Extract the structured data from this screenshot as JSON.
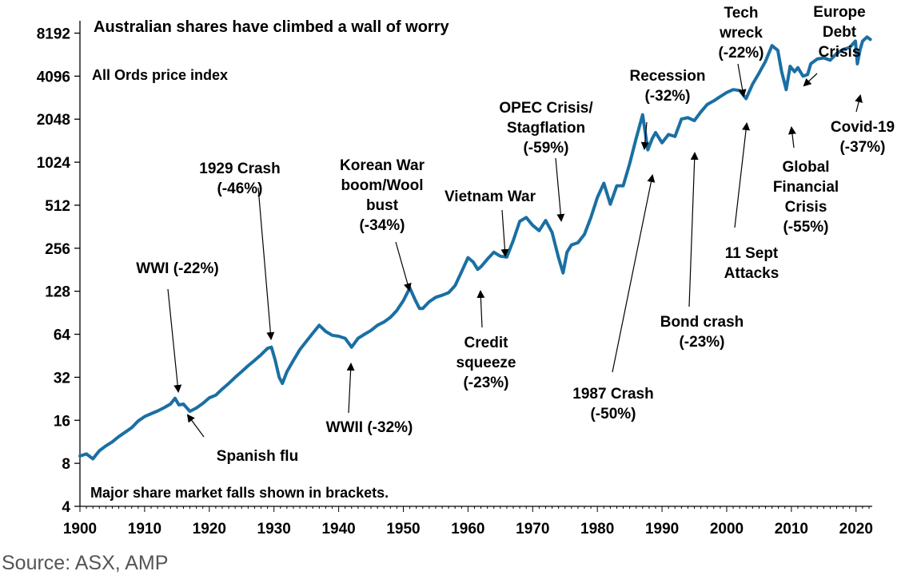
{
  "chart_data": {
    "type": "line",
    "title": "Australian shares have climbed a wall of worry",
    "subtitle": "All Ords price index",
    "note": "Major share market falls shown in brackets.",
    "source": "Source: ASX, AMP",
    "xlabel": "",
    "ylabel": "",
    "y_scale": "log2",
    "ylim": [
      4,
      10000
    ],
    "xlim": [
      1900,
      2022.5
    ],
    "y_ticks": [
      4,
      8,
      16,
      32,
      64,
      128,
      256,
      512,
      1024,
      2048,
      4096,
      8192
    ],
    "x_ticks": [
      1900,
      1910,
      1920,
      1930,
      1940,
      1950,
      1960,
      1970,
      1980,
      1990,
      2000,
      2010,
      2020
    ],
    "line_color": "#1a6fa3",
    "series": [
      {
        "name": "All Ords price index",
        "points": [
          [
            1900,
            9
          ],
          [
            1901,
            9.3
          ],
          [
            1902,
            8.6
          ],
          [
            1903,
            9.8
          ],
          [
            1904,
            10.6
          ],
          [
            1905,
            11.3
          ],
          [
            1906,
            12.3
          ],
          [
            1907,
            13.2
          ],
          [
            1908,
            14.2
          ],
          [
            1909,
            15.8
          ],
          [
            1910,
            17
          ],
          [
            1911,
            17.8
          ],
          [
            1912,
            18.6
          ],
          [
            1913,
            19.6
          ],
          [
            1914,
            20.8
          ],
          [
            1914.7,
            22.8
          ],
          [
            1915.3,
            20.5
          ],
          [
            1916,
            20.8
          ],
          [
            1917,
            18.5
          ],
          [
            1918,
            19.5
          ],
          [
            1919,
            21
          ],
          [
            1920,
            23
          ],
          [
            1921,
            24
          ],
          [
            1922,
            26.5
          ],
          [
            1923,
            29
          ],
          [
            1924,
            32
          ],
          [
            1925,
            35
          ],
          [
            1926,
            38.5
          ],
          [
            1927,
            42
          ],
          [
            1928,
            46
          ],
          [
            1929,
            51
          ],
          [
            1929.6,
            52
          ],
          [
            1930.2,
            42
          ],
          [
            1930.8,
            32
          ],
          [
            1931.3,
            29
          ],
          [
            1932,
            35
          ],
          [
            1933,
            42
          ],
          [
            1934,
            50
          ],
          [
            1935,
            57
          ],
          [
            1936,
            65
          ],
          [
            1937,
            74
          ],
          [
            1938,
            67
          ],
          [
            1939,
            63
          ],
          [
            1940,
            62
          ],
          [
            1941,
            60
          ],
          [
            1942,
            52
          ],
          [
            1943,
            60
          ],
          [
            1944,
            64
          ],
          [
            1945,
            68
          ],
          [
            1946,
            74
          ],
          [
            1947,
            78
          ],
          [
            1948,
            84
          ],
          [
            1949,
            94
          ],
          [
            1950,
            110
          ],
          [
            1951,
            135
          ],
          [
            1951.8,
            112
          ],
          [
            1952.5,
            97
          ],
          [
            1953,
            97
          ],
          [
            1954,
            108
          ],
          [
            1955,
            116
          ],
          [
            1956,
            120
          ],
          [
            1957,
            125
          ],
          [
            1958,
            140
          ],
          [
            1959,
            175
          ],
          [
            1960,
            220
          ],
          [
            1960.8,
            205
          ],
          [
            1961.5,
            182
          ],
          [
            1962,
            190
          ],
          [
            1963,
            215
          ],
          [
            1964,
            240
          ],
          [
            1965,
            225
          ],
          [
            1966,
            222
          ],
          [
            1967,
            290
          ],
          [
            1968,
            395
          ],
          [
            1969,
            420
          ],
          [
            1970,
            370
          ],
          [
            1971,
            340
          ],
          [
            1972,
            400
          ],
          [
            1973,
            330
          ],
          [
            1974,
            220
          ],
          [
            1974.7,
            172
          ],
          [
            1975.3,
            240
          ],
          [
            1976,
            270
          ],
          [
            1977,
            280
          ],
          [
            1978,
            320
          ],
          [
            1979,
            420
          ],
          [
            1980,
            580
          ],
          [
            1981,
            730
          ],
          [
            1982,
            520
          ],
          [
            1983,
            700
          ],
          [
            1984,
            700
          ],
          [
            1985,
            1000
          ],
          [
            1986,
            1500
          ],
          [
            1987,
            2200
          ],
          [
            1987.8,
            1250
          ],
          [
            1988.5,
            1500
          ],
          [
            1989,
            1650
          ],
          [
            1990,
            1400
          ],
          [
            1991,
            1600
          ],
          [
            1992,
            1550
          ],
          [
            1993,
            2050
          ],
          [
            1994,
            2100
          ],
          [
            1995,
            2000
          ],
          [
            1996,
            2300
          ],
          [
            1997,
            2600
          ],
          [
            1998,
            2750
          ],
          [
            1999,
            2950
          ],
          [
            2000,
            3150
          ],
          [
            2001,
            3300
          ],
          [
            2002,
            3250
          ],
          [
            2003,
            2850
          ],
          [
            2004,
            3600
          ],
          [
            2005,
            4300
          ],
          [
            2006,
            5200
          ],
          [
            2007,
            6700
          ],
          [
            2007.9,
            6200
          ],
          [
            2008.5,
            4400
          ],
          [
            2009.2,
            3300
          ],
          [
            2009.8,
            4800
          ],
          [
            2010.5,
            4400
          ],
          [
            2011,
            4700
          ],
          [
            2011.8,
            4100
          ],
          [
            2012.5,
            4200
          ],
          [
            2013,
            5000
          ],
          [
            2014,
            5400
          ],
          [
            2015,
            5500
          ],
          [
            2016,
            5300
          ],
          [
            2017,
            5900
          ],
          [
            2018,
            6300
          ],
          [
            2019,
            6500
          ],
          [
            2019.9,
            7200
          ],
          [
            2020.2,
            5000
          ],
          [
            2020.6,
            6200
          ],
          [
            2021,
            7200
          ],
          [
            2021.7,
            7700
          ],
          [
            2022.2,
            7400
          ]
        ]
      }
    ],
    "annotations": [
      {
        "lines": [
          "WWI (-22%)"
        ]
      },
      {
        "lines": [
          "Spanish flu"
        ]
      },
      {
        "lines": [
          "1929 Crash",
          "(-46%)"
        ]
      },
      {
        "lines": [
          "WWII (-32%)"
        ]
      },
      {
        "lines": [
          "Korean War",
          "boom/Wool",
          "bust",
          "(-34%)"
        ]
      },
      {
        "lines": [
          "Credit",
          "squeeze",
          "(-23%)"
        ]
      },
      {
        "lines": [
          "Vietnam War"
        ]
      },
      {
        "lines": [
          "OPEC Crisis/",
          "Stagflation",
          "(-59%)"
        ]
      },
      {
        "lines": [
          "1987 Crash",
          "(-50%)"
        ]
      },
      {
        "lines": [
          "Recession",
          "(-32%)"
        ]
      },
      {
        "lines": [
          "Bond crash",
          "(-23%)"
        ]
      },
      {
        "lines": [
          "Tech",
          "wreck",
          "(-22%)"
        ]
      },
      {
        "lines": [
          "11 Sept",
          "Attacks"
        ]
      },
      {
        "lines": [
          "Global",
          "Financial",
          "Crisis",
          "(-55%)"
        ]
      },
      {
        "lines": [
          "Europe",
          "Debt",
          "Crisis"
        ]
      },
      {
        "lines": [
          "Covid-19",
          "(-37%)"
        ]
      }
    ]
  }
}
